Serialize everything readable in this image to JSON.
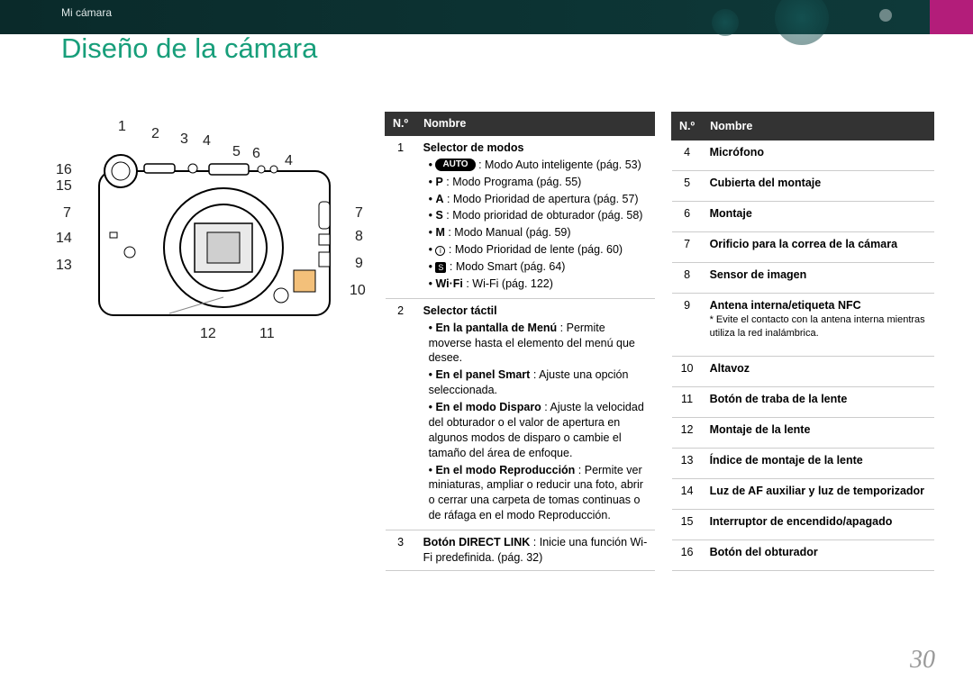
{
  "breadcrumb": "Mi cámara",
  "title": "Diseño de la cámara",
  "title_color": "#179e7a",
  "page_number": "30",
  "labels_left": [
    "16",
    "15",
    "7",
    "14",
    "13"
  ],
  "labels_top": [
    "1",
    "2",
    "3",
    "4",
    "5",
    "6",
    "4"
  ],
  "labels_right": [
    "7",
    "8",
    "9",
    "10"
  ],
  "labels_bottom": [
    "12",
    "11"
  ],
  "t1_header_num": "N.º",
  "t1_header_name": "Nombre",
  "sel_modos_title": "Selector de modos",
  "modes": {
    "auto": ": Modo Auto inteligente (pág. 53)",
    "p": ": Modo Programa (pág. 55)",
    "a": ": Modo Prioridad de apertura (pág. 57)",
    "s": ": Modo prioridad de obturador (pág. 58)",
    "m": ": Modo Manual (pág. 59)",
    "i": ": Modo Prioridad de lente (pág. 60)",
    "smart": ": Modo Smart (pág. 64)",
    "wifi": ": Wi-Fi (pág. 122)"
  },
  "auto_badge": "AUTO",
  "wifi_badge": "Wi·Fi",
  "sel_tactil_title": "Selector táctil",
  "tactil": {
    "menu_b": "En la pantalla de Menú",
    "menu": " : Permite moverse hasta el elemento del menú que desee.",
    "smart_b": "En el panel Smart",
    "smart": " : Ajuste una opción seleccionada.",
    "disparo_b": "En el modo Disparo",
    "disparo": " : Ajuste la velocidad del obturador o el valor de apertura en algunos modos de disparo o cambie el tamaño del área de enfoque.",
    "repro_b": "En el modo Reproducción",
    "repro": " : Permite ver miniaturas, ampliar o reducir una foto, abrir o cerrar una carpeta de tomas continuas o de ráfaga en el modo Reproducción."
  },
  "row3_b": "Botón DIRECT LINK",
  "row3": " : Inicie una función Wi-Fi predefinida. (pág. 32)",
  "t2": [
    {
      "n": "4",
      "name": "Micrófono"
    },
    {
      "n": "5",
      "name": "Cubierta del montaje"
    },
    {
      "n": "6",
      "name": "Montaje"
    },
    {
      "n": "7",
      "name": "Orificio para la correa de la cámara"
    },
    {
      "n": "8",
      "name": "Sensor de imagen"
    },
    {
      "n": "9",
      "name": "Antena interna/etiqueta NFC",
      "note": "* Evite el contacto con la antena interna mientras utiliza la red inalámbrica."
    },
    {
      "n": "10",
      "name": "Altavoz"
    },
    {
      "n": "11",
      "name": "Botón de traba de la lente"
    },
    {
      "n": "12",
      "name": "Montaje de la lente"
    },
    {
      "n": "13",
      "name": "Índice de montaje de la lente"
    },
    {
      "n": "14",
      "name": "Luz de AF auxiliar y luz de temporizador"
    },
    {
      "n": "15",
      "name": "Interruptor de encendido/apagado"
    },
    {
      "n": "16",
      "name": "Botón del obturador"
    }
  ]
}
